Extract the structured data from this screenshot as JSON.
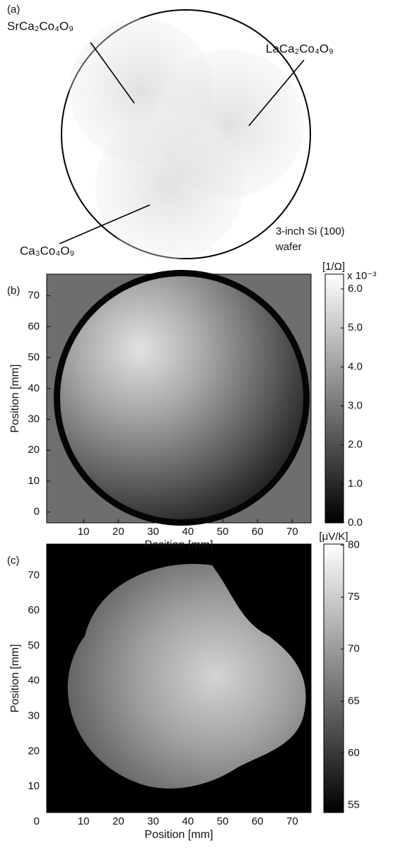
{
  "panel_a": {
    "label": "(a)",
    "films": [
      "SrCa₂Co₄O₉",
      "LaCa₂Co₄O₉",
      "Ca₃Co₄O₉"
    ],
    "wafer_label": [
      "3-inch Si (100)",
      "wafer"
    ]
  },
  "panel_b": {
    "label": "(b)",
    "xlabel": "Position [mm]",
    "ylabel": "Position [mm]",
    "xlim": [
      -0.6,
      75.4
    ],
    "ylim": [
      -3.5,
      77.0
    ],
    "xticks": [
      10,
      20,
      30,
      40,
      50,
      60,
      70
    ],
    "yticks": [
      0,
      10,
      20,
      30,
      40,
      50,
      60,
      70
    ],
    "colorbar": {
      "unit": "[1/Ω]",
      "scale": "x 10⁻³",
      "lim": [
        0,
        6.38
      ],
      "ticks": [
        {
          "value": 0,
          "label": "0.0"
        },
        {
          "value": 1,
          "label": "1.0"
        },
        {
          "value": 2,
          "label": "2.0"
        },
        {
          "value": 3,
          "label": "3.0"
        },
        {
          "value": 4,
          "label": "4.0"
        },
        {
          "value": 5,
          "label": "5.0"
        },
        {
          "value": 6,
          "label": "6.0"
        }
      ]
    }
  },
  "panel_c": {
    "label": "(c)",
    "xlabel": "Position [mm]",
    "ylabel": "Position [mm]",
    "xlim": [
      -0.6,
      75.4
    ],
    "ylim": [
      2.6,
      78.9
    ],
    "xticks": [
      10,
      20,
      30,
      40,
      50,
      60,
      70
    ],
    "yticks": [
      0,
      10,
      20,
      30,
      40,
      50,
      60,
      70
    ],
    "colorbar": {
      "unit": "[μV/K]",
      "lim": [
        54.3,
        80.1
      ],
      "ticks": [
        55,
        60,
        65,
        70,
        75,
        80
      ]
    }
  }
}
